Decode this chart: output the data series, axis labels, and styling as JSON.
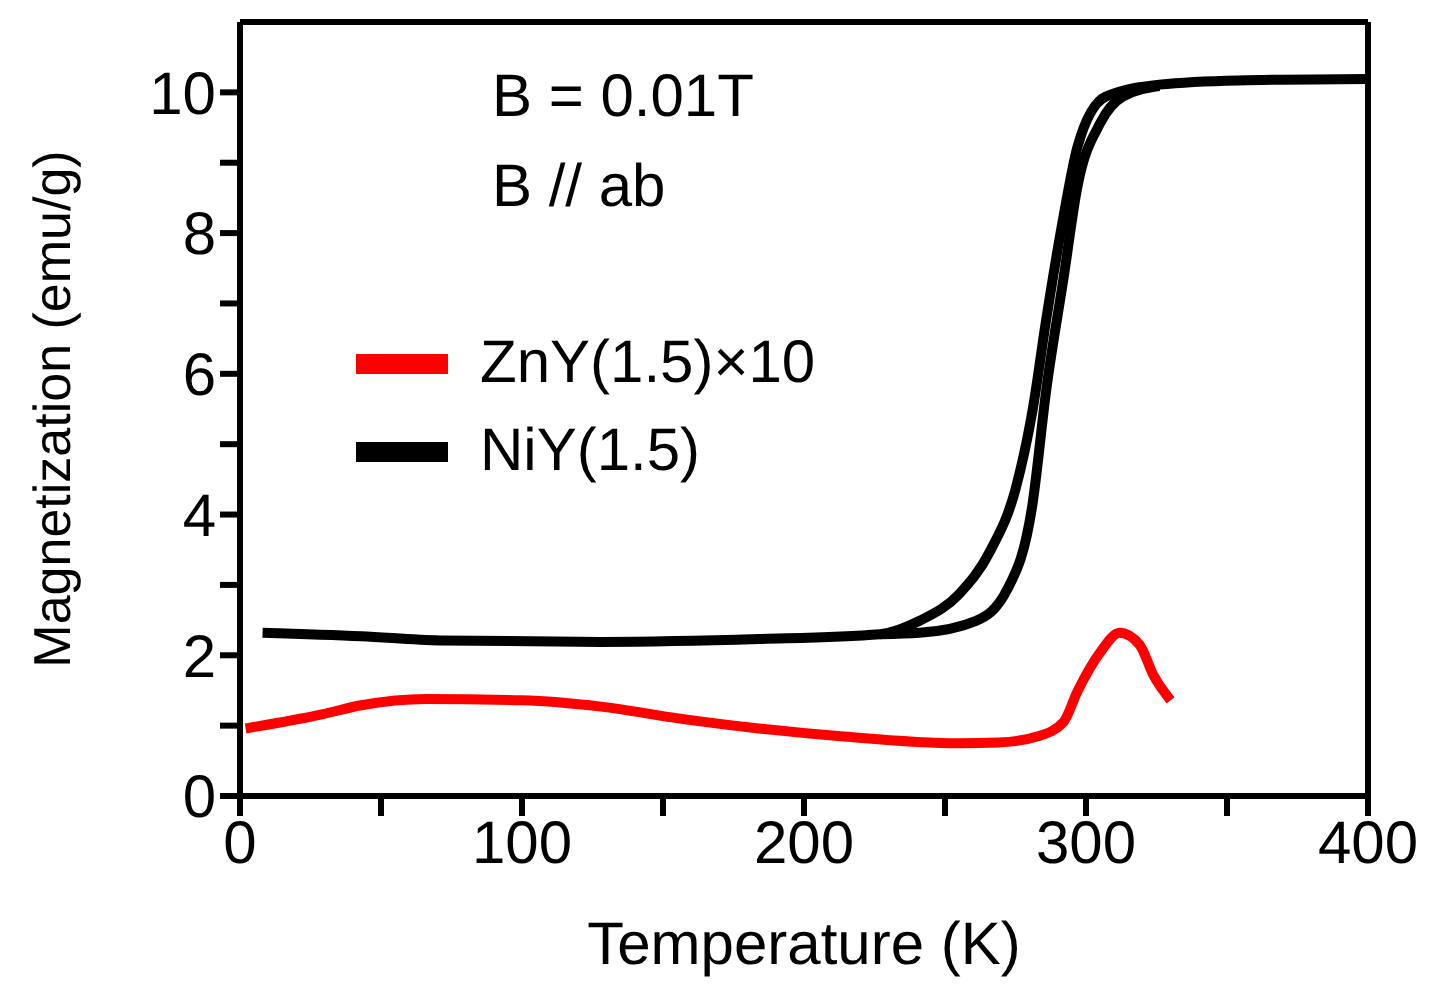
{
  "chart_data": {
    "type": "line",
    "xlabel": "Temperature (K)",
    "ylabel": "Magnetization (emu/g)",
    "xlim": [
      0,
      400
    ],
    "xticks": [
      0,
      {
        "value": 50,
        "label": null
      },
      100,
      {
        "value": 150,
        "label": null
      },
      200,
      {
        "value": 250,
        "label": null
      },
      300,
      {
        "value": 350,
        "label": null
      },
      400
    ],
    "ylim": [
      0,
      11
    ],
    "yticks": [
      0,
      {
        "value": 1,
        "label": null
      },
      2,
      {
        "value": 3,
        "label": null
      },
      4,
      {
        "value": 5,
        "label": null
      },
      6,
      {
        "value": 7,
        "label": null
      },
      8,
      {
        "value": 9,
        "label": null
      },
      10
    ],
    "annotations": [
      "B = 0.01T",
      "B // ab"
    ],
    "legend": "left",
    "marker": "none",
    "line_style": "solid",
    "series": [
      {
        "name": "ZnY(1.5)×10",
        "color": "#ff0000",
        "x": [
          2,
          29,
          43,
          66,
          100,
          128,
          156,
          184,
          213,
          255,
          269,
          283,
          292,
          297,
          305,
          312,
          319,
          324,
          330
        ],
        "values": [
          0.96,
          1.16,
          1.29,
          1.38,
          1.36,
          1.27,
          1.1,
          0.96,
          0.85,
          0.75,
          0.76,
          0.85,
          1.05,
          1.49,
          2.04,
          2.32,
          2.15,
          1.71,
          1.36
        ]
      },
      {
        "name": "NiY(1.5)",
        "color": "#000000",
        "x": [
          8,
          43,
          71,
          128,
          184,
          227,
          241,
          255,
          266,
          275,
          281,
          286,
          292,
          297,
          307,
          326,
          354,
          400
        ],
        "values": [
          2.32,
          2.27,
          2.21,
          2.19,
          2.23,
          2.3,
          2.49,
          2.87,
          3.48,
          4.36,
          5.47,
          6.8,
          8.23,
          9.23,
          9.94,
          10.11,
          10.17,
          10.19
        ]
      },
      {
        "color": "#000000",
        "x": [
          227,
          241,
          261,
          272,
          281,
          286,
          292,
          297,
          305,
          313,
          326
        ],
        "values": [
          2.3,
          2.32,
          2.49,
          2.93,
          4.14,
          5.8,
          7.35,
          8.67,
          9.56,
          9.94,
          10.09
        ]
      }
    ]
  }
}
